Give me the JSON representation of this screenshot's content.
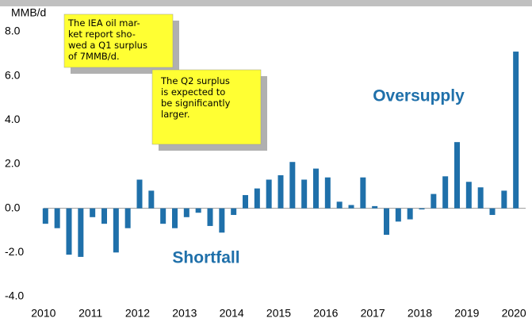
{
  "chart_data": {
    "type": "bar",
    "title": "MMB/d",
    "x": [
      2010,
      2010.25,
      2010.5,
      2010.75,
      2011,
      2011.25,
      2011.5,
      2011.75,
      2012,
      2012.25,
      2012.5,
      2012.75,
      2013,
      2013.25,
      2013.5,
      2013.75,
      2014,
      2014.25,
      2014.5,
      2014.75,
      2015,
      2015.25,
      2015.5,
      2015.75,
      2016,
      2016.25,
      2016.5,
      2016.75,
      2017,
      2017.25,
      2017.5,
      2017.75,
      2018,
      2018.25,
      2018.5,
      2018.75,
      2019,
      2019.25,
      2019.5,
      2019.75,
      2020
    ],
    "values": [
      -0.7,
      -0.9,
      -2.1,
      -2.2,
      -0.4,
      -0.7,
      -2.0,
      -0.9,
      1.3,
      0.8,
      -0.7,
      -0.9,
      -0.4,
      -0.2,
      -0.8,
      -1.1,
      -0.3,
      0.6,
      0.9,
      1.3,
      1.5,
      2.1,
      1.3,
      1.8,
      1.4,
      0.3,
      0.15,
      1.4,
      0.1,
      -1.2,
      -0.6,
      -0.5,
      -0.05,
      0.65,
      1.45,
      3.0,
      1.2,
      0.95,
      -0.3,
      0.8,
      7.1
    ],
    "color": "#1f70aa",
    "xlim": [
      2009.75,
      2020.25
    ],
    "xticks": [
      2010,
      2011,
      2012,
      2013,
      2014,
      2015,
      2016,
      2017,
      2018,
      2019,
      2020
    ],
    "ylim": [
      -4,
      8
    ],
    "yticks": [
      {
        "value": -4,
        "label": "-4.0"
      },
      {
        "value": -2,
        "label": "-2.0"
      },
      {
        "value": 0,
        "label": "0.0"
      },
      {
        "value": 2,
        "label": "2.0"
      },
      {
        "value": 4,
        "label": "4.0"
      },
      {
        "value": 6,
        "label": "6.0"
      },
      {
        "value": 8,
        "label": "8.0"
      }
    ],
    "annotations": [
      {
        "text": "Oversupply"
      },
      {
        "text": "Shortfall"
      },
      {
        "lines": [
          "The IEA oil mar-",
          "ket report sho-",
          "wed a Q1 surplus",
          "of 7MMB/d."
        ]
      },
      {
        "lines": [
          "The Q2 surplus",
          "is expected to",
          "be significantly",
          "larger."
        ]
      }
    ]
  }
}
